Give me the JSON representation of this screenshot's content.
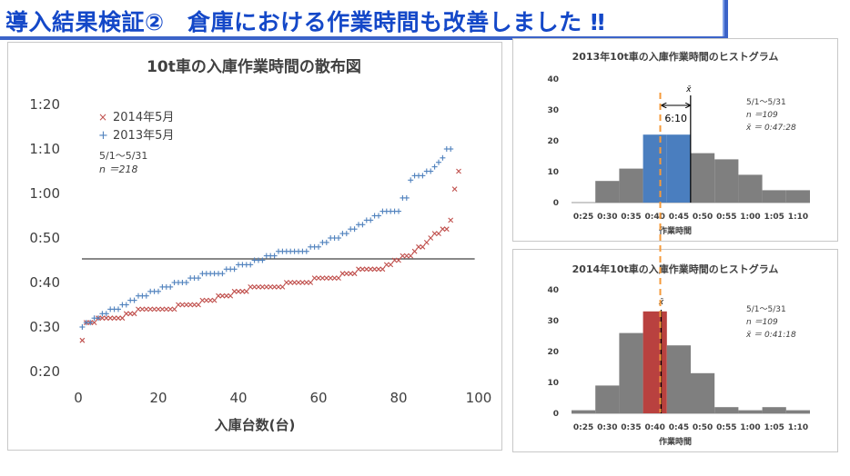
{
  "page": {
    "title": "導入結果検証②　倉庫における作業時間も改善しました ‼"
  },
  "colors": {
    "banner_text": "#1448c8",
    "series_2014": "#c0504d",
    "series_2013": "#4f81bd",
    "hist_gray": "#7f7f7f",
    "hist_2013_highlight": "#4a7ebf",
    "hist_2014_highlight": "#b9413f",
    "dashed_line": "#f59a3b"
  },
  "chart_data": [
    {
      "type": "scatter",
      "title": "10t車の入庫作業時間の散布図",
      "xlabel": "入庫台数(台)",
      "ylabel": "",
      "xlim": [
        0,
        100
      ],
      "ylim": [
        20,
        80
      ],
      "x_ticks": [
        "0",
        "20",
        "40",
        "60",
        "80",
        "100"
      ],
      "y_ticks": [
        "0:20",
        "0:30",
        "0:40",
        "0:50",
        "1:00",
        "1:10",
        "1:20"
      ],
      "legend": {
        "placement": "top-left",
        "entries": [
          "2014年5月",
          "2013年5月"
        ]
      },
      "annotation": {
        "period": "5/1～5/31",
        "n": "n ＝218"
      },
      "reference_line_y": 45.3,
      "series": [
        {
          "name": "2014年5月",
          "marker": "x",
          "values": [
            27,
            31,
            31,
            31,
            32,
            32,
            32,
            32,
            32,
            32,
            32,
            33,
            33,
            33,
            34,
            34,
            34,
            34,
            34,
            34,
            34,
            34,
            34,
            34,
            35,
            35,
            35,
            35,
            35,
            35,
            36,
            36,
            36,
            36,
            37,
            37,
            37,
            37,
            38,
            38,
            38,
            38,
            39,
            39,
            39,
            39,
            39,
            39,
            39,
            39,
            39,
            40,
            40,
            40,
            40,
            40,
            40,
            40,
            41,
            41,
            41,
            41,
            41,
            41,
            41,
            42,
            42,
            42,
            42,
            43,
            43,
            43,
            43,
            43,
            43,
            43,
            44,
            44,
            45,
            45,
            46,
            46,
            46,
            47,
            48,
            48,
            49,
            50,
            51,
            51,
            52,
            52,
            54,
            61,
            65
          ]
        },
        {
          "name": "2013年5月",
          "marker": "+",
          "values": [
            30,
            31,
            31,
            32,
            32,
            33,
            33,
            34,
            34,
            34,
            35,
            35,
            36,
            36,
            37,
            37,
            37,
            38,
            38,
            38,
            39,
            39,
            39,
            40,
            40,
            40,
            40,
            41,
            41,
            41,
            42,
            42,
            42,
            42,
            42,
            42,
            43,
            43,
            43,
            44,
            44,
            44,
            44,
            45,
            45,
            45,
            46,
            46,
            46,
            47,
            47,
            47,
            47,
            47,
            47,
            47,
            47,
            48,
            48,
            48,
            49,
            49,
            50,
            50,
            50,
            51,
            51,
            52,
            52,
            53,
            53,
            54,
            54,
            55,
            55,
            56,
            56,
            56,
            56,
            56,
            59,
            59,
            63,
            64,
            64,
            64,
            65,
            65,
            66,
            67,
            68,
            70,
            70
          ]
        }
      ]
    },
    {
      "type": "bar",
      "title": "2013年10t車の入庫作業時間のヒストグラム",
      "xlabel": "作業時間",
      "ylabel": "",
      "ylim": [
        0,
        40
      ],
      "y_ticks": [
        "0",
        "10",
        "20",
        "30",
        "40"
      ],
      "categories": [
        "0:25",
        "0:30",
        "0:35",
        "0:40",
        "0:45",
        "0:50",
        "0:55",
        "1:00",
        "1:05",
        "1:10"
      ],
      "values": [
        0,
        7,
        11,
        22,
        22,
        16,
        14,
        9,
        4,
        4
      ],
      "highlight_bins": [
        3,
        4
      ],
      "mean_label": "x̄",
      "difference_label": "6:10",
      "annotation": {
        "period": "5/1～5/31",
        "n": "n ＝109",
        "mean": "x̄ ＝ 0:47:28"
      }
    },
    {
      "type": "bar",
      "title": "2014年10t車の入庫作業時間のヒストグラム",
      "xlabel": "作業時間",
      "ylabel": "",
      "ylim": [
        0,
        40
      ],
      "y_ticks": [
        "0",
        "10",
        "20",
        "30",
        "40"
      ],
      "categories": [
        "0:25",
        "0:30",
        "0:35",
        "0:40",
        "0:45",
        "0:50",
        "0:55",
        "1:00",
        "1:05",
        "1:10"
      ],
      "values": [
        1,
        9,
        26,
        33,
        22,
        13,
        2,
        1,
        2,
        1
      ],
      "highlight_bins": [
        3
      ],
      "mean_label": "x̄",
      "annotation": {
        "period": "5/1～5/31",
        "n": "n ＝109",
        "mean": "x̄ ＝ 0:41:18"
      }
    }
  ]
}
